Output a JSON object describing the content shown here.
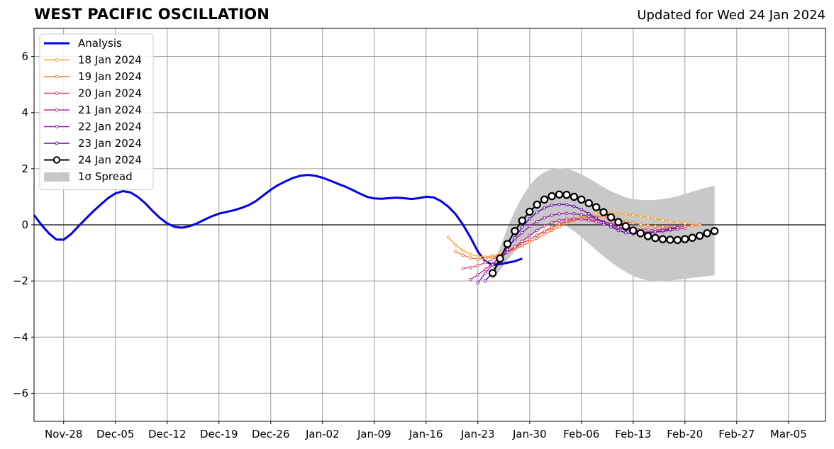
{
  "header": {
    "title": "WEST PACIFIC OSCILLATION",
    "updated": "Updated for Wed 24 Jan 2024"
  },
  "chart_data": {
    "type": "line",
    "title": "WEST PACIFIC OSCILLATION",
    "subtitle": "Updated for Wed 24 Jan 2024",
    "xlabel": "",
    "ylabel": "",
    "x_axis": {
      "type": "date",
      "range": [
        "2023-11-24",
        "2024-03-10"
      ],
      "ticks": [
        "2023-11-28",
        "2023-12-05",
        "2023-12-12",
        "2023-12-19",
        "2023-12-26",
        "2024-01-02",
        "2024-01-09",
        "2024-01-16",
        "2024-01-23",
        "2024-01-30",
        "2024-02-06",
        "2024-02-13",
        "2024-02-20",
        "2024-02-27",
        "2024-03-05"
      ],
      "tick_labels": [
        "Nov-28",
        "Dec-05",
        "Dec-12",
        "Dec-19",
        "Dec-26",
        "Jan-02",
        "Jan-09",
        "Jan-16",
        "Jan-23",
        "Jan-30",
        "Feb-06",
        "Feb-13",
        "Feb-20",
        "Feb-27",
        "Mar-05"
      ]
    },
    "y_axis": {
      "range": [
        -7,
        7
      ],
      "ticks": [
        -6,
        -4,
        -2,
        0,
        2,
        4,
        6
      ],
      "tick_labels": [
        "−6",
        "−4",
        "−2",
        "0",
        "2",
        "4",
        "6"
      ]
    },
    "grid": true,
    "zero_line": true,
    "legend_position": "top-left",
    "analysis": {
      "name": "Analysis",
      "color": "#0000ee",
      "start_date": "2023-11-24",
      "values": [
        0.35,
        0.0,
        -0.3,
        -0.52,
        -0.53,
        -0.33,
        -0.05,
        0.22,
        0.48,
        0.72,
        0.95,
        1.12,
        1.2,
        1.16,
        1.0,
        0.78,
        0.5,
        0.25,
        0.05,
        -0.07,
        -0.1,
        -0.05,
        0.05,
        0.18,
        0.3,
        0.4,
        0.46,
        0.52,
        0.6,
        0.7,
        0.85,
        1.05,
        1.25,
        1.42,
        1.55,
        1.67,
        1.75,
        1.78,
        1.75,
        1.68,
        1.58,
        1.47,
        1.37,
        1.25,
        1.12,
        1.0,
        0.94,
        0.93,
        0.95,
        0.97,
        0.95,
        0.92,
        0.95,
        1.0,
        0.98,
        0.85,
        0.65,
        0.38,
        0.0,
        -0.45,
        -0.95,
        -1.3,
        -1.42,
        -1.4,
        -1.35,
        -1.3,
        -1.2
      ]
    },
    "forecasts": [
      {
        "name": "18 Jan 2024",
        "color": "#f7a42a",
        "start_date": "2024-01-19",
        "values": [
          -0.45,
          -0.72,
          -0.92,
          -1.05,
          -1.12,
          -1.14,
          -1.1,
          -1.02,
          -0.9,
          -0.78,
          -0.65,
          -0.52,
          -0.38,
          -0.25,
          -0.12,
          0.0,
          0.12,
          0.22,
          0.3,
          0.36,
          0.4,
          0.42,
          0.42,
          0.4,
          0.38,
          0.35,
          0.31,
          0.27,
          0.22,
          0.17,
          0.12,
          0.08,
          0.05,
          0.02,
          0.0
        ]
      },
      {
        "name": "19 Jan 2024",
        "color": "#f47a3a",
        "start_date": "2024-01-20",
        "values": [
          -0.95,
          -1.08,
          -1.18,
          -1.22,
          -1.2,
          -1.15,
          -1.08,
          -0.98,
          -0.87,
          -0.75,
          -0.62,
          -0.48,
          -0.34,
          -0.2,
          -0.07,
          0.06,
          0.16,
          0.24,
          0.29,
          0.3,
          0.28,
          0.24,
          0.19,
          0.13,
          0.07,
          0.02,
          -0.02,
          -0.05,
          -0.07,
          -0.08,
          -0.08,
          -0.06,
          -0.03,
          0.0
        ]
      },
      {
        "name": "20 Jan 2024",
        "color": "#e0496a",
        "start_date": "2024-01-21",
        "values": [
          -1.55,
          -1.52,
          -1.45,
          -1.35,
          -1.23,
          -1.1,
          -0.96,
          -0.82,
          -0.67,
          -0.52,
          -0.37,
          -0.22,
          -0.08,
          0.04,
          0.13,
          0.18,
          0.2,
          0.19,
          0.16,
          0.11,
          0.05,
          -0.01,
          -0.07,
          -0.12,
          -0.15,
          -0.17,
          -0.17,
          -0.15,
          -0.12,
          -0.08,
          -0.05
        ]
      },
      {
        "name": "21 Jan 2024",
        "color": "#b8328f",
        "start_date": "2024-01-22",
        "values": [
          -1.95,
          -1.78,
          -1.58,
          -1.38,
          -1.18,
          -0.98,
          -0.78,
          -0.58,
          -0.38,
          -0.2,
          -0.04,
          0.08,
          0.16,
          0.2,
          0.22,
          0.2,
          0.16,
          0.1,
          0.03,
          -0.05,
          -0.12,
          -0.18,
          -0.23,
          -0.26,
          -0.27,
          -0.26,
          -0.24,
          -0.2,
          -0.16,
          -0.12
        ]
      },
      {
        "name": "22 Jan 2024",
        "color": "#8a1ea8",
        "start_date": "2024-01-23",
        "values": [
          -2.07,
          -1.72,
          -1.42,
          -1.12,
          -0.82,
          -0.52,
          -0.28,
          -0.05,
          0.12,
          0.25,
          0.34,
          0.39,
          0.41,
          0.4,
          0.36,
          0.3,
          0.22,
          0.12,
          0.02,
          -0.08,
          -0.16,
          -0.22,
          -0.25,
          -0.26,
          -0.24,
          -0.2,
          -0.15,
          -0.1
        ]
      },
      {
        "name": "23 Jan 2024",
        "color": "#5a0db0",
        "start_date": "2024-01-24",
        "values": [
          -2.0,
          -1.7,
          -1.3,
          -0.88,
          -0.46,
          -0.08,
          0.22,
          0.45,
          0.6,
          0.7,
          0.73,
          0.72,
          0.66,
          0.55,
          0.4,
          0.24,
          0.08,
          -0.07,
          -0.2,
          -0.28,
          -0.32,
          -0.32,
          -0.3,
          -0.25,
          -0.2,
          -0.15,
          -0.1
        ]
      },
      {
        "name": "24 Jan 2024",
        "color": "#000000",
        "marker": "white-circle",
        "start_date": "2024-01-25",
        "values": [
          -1.72,
          -1.2,
          -0.68,
          -0.22,
          0.15,
          0.47,
          0.72,
          0.9,
          1.02,
          1.08,
          1.07,
          1.0,
          0.9,
          0.77,
          0.63,
          0.45,
          0.27,
          0.1,
          -0.05,
          -0.2,
          -0.3,
          -0.4,
          -0.47,
          -0.51,
          -0.53,
          -0.54,
          -0.51,
          -0.46,
          -0.39,
          -0.3,
          -0.22
        ]
      }
    ],
    "spread": {
      "name": "1σ Spread",
      "color": "#c8c8c8",
      "start_date": "2024-01-25",
      "upper": [
        -1.5,
        -0.8,
        -0.1,
        0.5,
        1.0,
        1.4,
        1.7,
        1.88,
        1.98,
        2.02,
        2.0,
        1.92,
        1.8,
        1.66,
        1.5,
        1.34,
        1.2,
        1.08,
        0.98,
        0.92,
        0.89,
        0.88,
        0.89,
        0.92,
        0.96,
        1.02,
        1.1,
        1.18,
        1.26,
        1.33,
        1.4
      ],
      "lower": [
        -1.95,
        -1.62,
        -1.26,
        -0.94,
        -0.66,
        -0.42,
        -0.22,
        -0.06,
        0.03,
        0.04,
        -0.05,
        -0.22,
        -0.43,
        -0.67,
        -0.9,
        -1.12,
        -1.33,
        -1.52,
        -1.68,
        -1.82,
        -1.92,
        -1.98,
        -2.0,
        -2.0,
        -1.98,
        -1.95,
        -1.92,
        -1.89,
        -1.86,
        -1.83,
        -1.8
      ]
    }
  }
}
